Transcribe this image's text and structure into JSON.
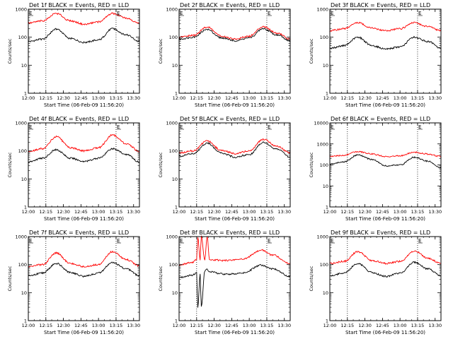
{
  "colors": {
    "events": "#000000",
    "lld": "#ff0000",
    "background": "#ffffff"
  },
  "chart_data": [
    {
      "type": "line",
      "title": "Det 1f BLACK = Events, RED = LLD",
      "xlabel": "Start Time (06-Feb-09 11:56:20)",
      "ylabel": "Counts/sec",
      "x_range_min": [
        720,
        815
      ],
      "xticks": [
        "12:00",
        "12:15",
        "12:30",
        "12:45",
        "13:00",
        "13:15",
        "13:30"
      ],
      "ylim": [
        1,
        1000
      ],
      "yscale": "log",
      "yticks": [
        "1",
        "10",
        "100",
        "1000"
      ],
      "markers": [
        {
          "label": "E",
          "time": "12:00"
        },
        {
          "label": "E",
          "time": "13:15"
        }
      ],
      "dotted_lines_at": [
        "12:15",
        "13:15"
      ],
      "series": [
        {
          "name": "Events",
          "color": "black",
          "t": [
            720,
            732,
            744,
            756,
            768,
            780,
            792,
            804,
            815
          ],
          "y": [
            70,
            85,
            195,
            90,
            65,
            80,
            200,
            120,
            70
          ]
        },
        {
          "name": "LLD",
          "color": "red",
          "t": [
            720,
            732,
            744,
            756,
            768,
            780,
            792,
            804,
            815
          ],
          "y": [
            320,
            380,
            700,
            380,
            290,
            350,
            700,
            480,
            310
          ]
        }
      ]
    },
    {
      "type": "line",
      "title": "Det 2f BLACK = Events, RED = LLD",
      "xlabel": "Start Time (06-Feb-09 11:56:20)",
      "ylabel": "Counts/sec",
      "x_range_min": [
        720,
        815
      ],
      "xticks": [
        "12:00",
        "12:15",
        "12:30",
        "12:45",
        "13:00",
        "13:15",
        "13:30"
      ],
      "ylim": [
        1,
        1000
      ],
      "yscale": "log",
      "yticks": [
        "1",
        "10",
        "100",
        "1000"
      ],
      "markers": [
        {
          "label": "E",
          "time": "12:00"
        },
        {
          "label": "E",
          "time": "13:15"
        }
      ],
      "dotted_lines_at": [
        "12:15",
        "13:15"
      ],
      "series": [
        {
          "name": "Events",
          "color": "black",
          "t": [
            720,
            732,
            744,
            756,
            768,
            780,
            792,
            804,
            815
          ],
          "y": [
            85,
            100,
            190,
            95,
            75,
            95,
            200,
            120,
            75
          ]
        },
        {
          "name": "LLD",
          "color": "red",
          "t": [
            720,
            732,
            744,
            756,
            768,
            780,
            792,
            804,
            815
          ],
          "y": [
            100,
            115,
            230,
            110,
            85,
            110,
            240,
            140,
            85
          ]
        }
      ]
    },
    {
      "type": "line",
      "title": "Det 3f BLACK = Events, RED = LLD",
      "xlabel": "Start Time (06-Feb-09 11:56:20)",
      "ylabel": "Counts/sec",
      "x_range_min": [
        720,
        815
      ],
      "xticks": [
        "12:00",
        "12:15",
        "12:30",
        "12:45",
        "13:00",
        "13:15",
        "13:30"
      ],
      "ylim": [
        1,
        1000
      ],
      "yscale": "log",
      "yticks": [
        "1",
        "10",
        "100",
        "1000"
      ],
      "markers": [
        {
          "label": "E",
          "time": "12:00"
        },
        {
          "label": "E",
          "time": "13:15"
        }
      ],
      "dotted_lines_at": [
        "12:15",
        "13:15"
      ],
      "series": [
        {
          "name": "Events",
          "color": "black",
          "t": [
            720,
            732,
            744,
            756,
            768,
            780,
            792,
            804,
            815
          ],
          "y": [
            40,
            50,
            100,
            50,
            38,
            45,
            100,
            70,
            40
          ]
        },
        {
          "name": "LLD",
          "color": "red",
          "t": [
            720,
            732,
            744,
            756,
            768,
            780,
            792,
            804,
            815
          ],
          "y": [
            170,
            200,
            330,
            210,
            170,
            200,
            330,
            240,
            170
          ]
        }
      ]
    },
    {
      "type": "line",
      "title": "Det 4f BLACK = Events, RED = LLD",
      "xlabel": "Start Time (06-Feb-09 11:56:20)",
      "ylabel": "Counts/sec",
      "x_range_min": [
        720,
        815
      ],
      "xticks": [
        "12:00",
        "12:15",
        "12:30",
        "12:45",
        "13:00",
        "13:15",
        "13:30"
      ],
      "ylim": [
        1,
        1000
      ],
      "yscale": "log",
      "yticks": [
        "1",
        "10",
        "100",
        "1000"
      ],
      "markers": [
        {
          "label": "E",
          "time": "12:00"
        },
        {
          "label": "E",
          "time": "13:15"
        }
      ],
      "dotted_lines_at": [
        "12:15",
        "13:15"
      ],
      "series": [
        {
          "name": "Events",
          "color": "black",
          "t": [
            720,
            732,
            744,
            756,
            768,
            780,
            792,
            804,
            815
          ],
          "y": [
            40,
            55,
            110,
            55,
            42,
            55,
            120,
            75,
            40
          ]
        },
        {
          "name": "LLD",
          "color": "red",
          "t": [
            720,
            732,
            744,
            756,
            768,
            780,
            792,
            804,
            815
          ],
          "y": [
            95,
            120,
            320,
            130,
            100,
            130,
            370,
            180,
            95
          ]
        }
      ]
    },
    {
      "type": "line",
      "title": "Det 5f BLACK = Events, RED = LLD",
      "xlabel": "Start Time (06-Feb-09 11:56:20)",
      "ylabel": "Counts/sec",
      "x_range_min": [
        720,
        815
      ],
      "xticks": [
        "12:00",
        "12:15",
        "12:30",
        "12:45",
        "13:00",
        "13:15",
        "13:30"
      ],
      "ylim": [
        1,
        1000
      ],
      "yscale": "log",
      "yticks": [
        "1",
        "10",
        "100",
        "1000"
      ],
      "markers": [
        {
          "label": "E",
          "time": "12:00"
        },
        {
          "label": "E",
          "time": "13:15"
        }
      ],
      "dotted_lines_at": [
        "12:15",
        "13:15"
      ],
      "series": [
        {
          "name": "Events",
          "color": "black",
          "t": [
            720,
            732,
            744,
            756,
            768,
            780,
            792,
            804,
            815
          ],
          "y": [
            65,
            80,
            190,
            85,
            60,
            75,
            200,
            115,
            60
          ]
        },
        {
          "name": "LLD",
          "color": "red",
          "t": [
            720,
            732,
            744,
            756,
            768,
            780,
            792,
            804,
            815
          ],
          "y": [
            85,
            100,
            230,
            105,
            80,
            100,
            260,
            145,
            85
          ]
        }
      ]
    },
    {
      "type": "line",
      "title": "Det 6f BLACK = Events, RED = LLD",
      "xlabel": "Start Time (06-Feb-09 11:56:20)",
      "ylabel": "Counts/sec",
      "x_range_min": [
        720,
        815
      ],
      "xticks": [
        "12:00",
        "12:15",
        "12:30",
        "12:45",
        "13:00",
        "13:15",
        "13:30"
      ],
      "ylim": [
        1,
        10000
      ],
      "yscale": "log",
      "yticks": [
        "1",
        "10",
        "100",
        "1000",
        "10000"
      ],
      "markers": [
        {
          "label": "E",
          "time": "12:00"
        },
        {
          "label": "E",
          "time": "13:15"
        }
      ],
      "dotted_lines_at": [
        "12:15",
        "13:15"
      ],
      "series": [
        {
          "name": "Events",
          "color": "black",
          "t": [
            720,
            732,
            744,
            756,
            768,
            780,
            792,
            804,
            815
          ],
          "y": [
            110,
            140,
            300,
            180,
            90,
            100,
            230,
            150,
            70
          ]
        },
        {
          "name": "LLD",
          "color": "red",
          "t": [
            720,
            732,
            744,
            756,
            768,
            780,
            792,
            804,
            815
          ],
          "y": [
            250,
            290,
            430,
            330,
            250,
            270,
            400,
            330,
            250
          ]
        }
      ]
    },
    {
      "type": "line",
      "title": "Det 7f BLACK = Events, RED = LLD",
      "xlabel": "Start Time (06-Feb-09 11:56:20)",
      "ylabel": "Counts/sec",
      "x_range_min": [
        720,
        815
      ],
      "xticks": [
        "12:00",
        "12:15",
        "12:30",
        "12:45",
        "13:00",
        "13:15",
        "13:30"
      ],
      "ylim": [
        1,
        1000
      ],
      "yscale": "log",
      "yticks": [
        "1",
        "10",
        "100",
        "1000"
      ],
      "markers": [
        {
          "label": "E",
          "time": "12:00"
        },
        {
          "label": "E",
          "time": "13:15"
        }
      ],
      "dotted_lines_at": [
        "12:15",
        "13:15"
      ],
      "series": [
        {
          "name": "Events",
          "color": "black",
          "t": [
            720,
            732,
            744,
            756,
            768,
            780,
            792,
            804,
            815
          ],
          "y": [
            40,
            50,
            110,
            52,
            38,
            50,
            120,
            70,
            40
          ]
        },
        {
          "name": "LLD",
          "color": "red",
          "t": [
            720,
            732,
            744,
            756,
            768,
            780,
            792,
            804,
            815
          ],
          "y": [
            85,
            100,
            260,
            110,
            85,
            100,
            290,
            150,
            90
          ]
        }
      ]
    },
    {
      "type": "line",
      "title": "Det 8f BLACK = Events, RED = LLD",
      "xlabel": "Start Time (06-Feb-09 11:56:20)",
      "ylabel": "Counts/sec",
      "x_range_min": [
        720,
        815
      ],
      "xticks": [
        "12:00",
        "12:15",
        "12:30",
        "12:45",
        "13:00",
        "13:15",
        "13:30"
      ],
      "ylim": [
        1,
        1000
      ],
      "yscale": "log",
      "yticks": [
        "1",
        "10",
        "100",
        "1000"
      ],
      "markers": [
        {
          "label": "E",
          "time": "12:00"
        },
        {
          "label": "E",
          "time": "13:15"
        }
      ],
      "dotted_lines_at": [
        "12:15",
        "13:15"
      ],
      "series": [
        {
          "name": "Events",
          "color": "black",
          "t": [
            720,
            731,
            735,
            736,
            738,
            739,
            742,
            744,
            746,
            760,
            775,
            790,
            800,
            815
          ],
          "y": [
            35,
            42,
            50,
            3,
            45,
            3,
            60,
            70,
            55,
            45,
            50,
            95,
            70,
            38
          ]
        },
        {
          "name": "LLD",
          "color": "red",
          "t": [
            720,
            731,
            735,
            736,
            738,
            739,
            742,
            744,
            746,
            760,
            775,
            790,
            800,
            815
          ],
          "y": [
            100,
            120,
            150,
            1000,
            150,
            1000,
            150,
            1000,
            150,
            140,
            160,
            330,
            220,
            110
          ]
        }
      ]
    },
    {
      "type": "line",
      "title": "Det 9f BLACK = Events, RED = LLD",
      "xlabel": "Start Time (06-Feb-09 11:56:20)",
      "ylabel": "Counts/sec",
      "x_range_min": [
        720,
        815
      ],
      "xticks": [
        "12:00",
        "12:15",
        "12:30",
        "12:45",
        "13:00",
        "13:15",
        "13:30"
      ],
      "ylim": [
        1,
        1000
      ],
      "yscale": "log",
      "yticks": [
        "1",
        "10",
        "100",
        "1000"
      ],
      "markers": [
        {
          "label": "E",
          "time": "12:00"
        },
        {
          "label": "E",
          "time": "13:15"
        }
      ],
      "dotted_lines_at": [
        "12:15",
        "13:15"
      ],
      "series": [
        {
          "name": "Events",
          "color": "black",
          "t": [
            720,
            732,
            744,
            756,
            768,
            780,
            792,
            804,
            815
          ],
          "y": [
            40,
            50,
            110,
            52,
            38,
            50,
            120,
            70,
            40
          ]
        },
        {
          "name": "LLD",
          "color": "red",
          "t": [
            720,
            732,
            744,
            756,
            768,
            780,
            792,
            804,
            815
          ],
          "y": [
            110,
            130,
            290,
            140,
            110,
            130,
            310,
            170,
            110
          ]
        }
      ]
    }
  ]
}
